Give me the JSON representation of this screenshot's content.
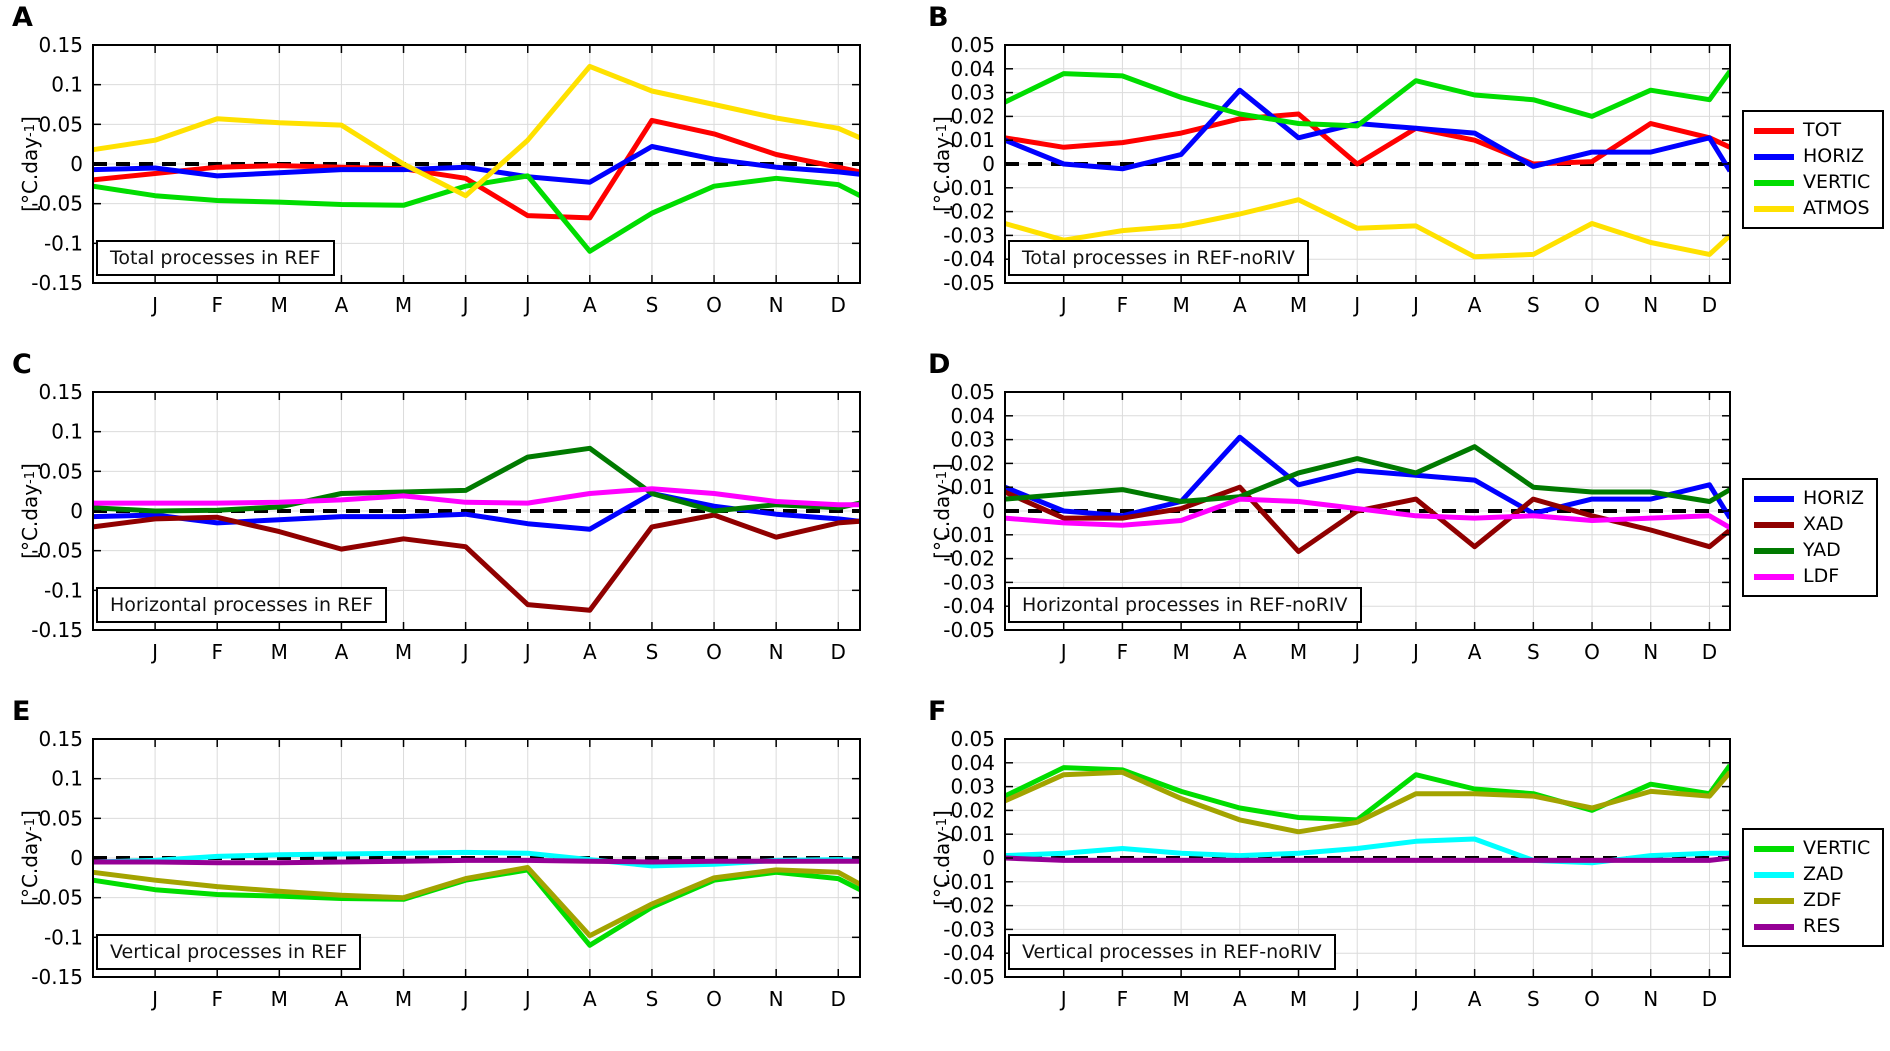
{
  "figure": {
    "background": "#FFFFFF"
  },
  "ylabel": {
    "prefix": "[°C.day",
    "sup": "-1",
    "suffix": "]"
  },
  "months": [
    "J",
    "F",
    "M",
    "A",
    "M",
    "J",
    "J",
    "A",
    "S",
    "O",
    "N",
    "D"
  ],
  "colors": {
    "TOT": "#FF0000",
    "HORIZ": "#0000FF",
    "VERTIC": "#00DD00",
    "ATMOS": "#FFE100",
    "XAD": "#900000",
    "YAD": "#007A00",
    "LDF": "#FF00FF",
    "ZAD": "#00FFFF",
    "ZDF": "#A3A300",
    "RES": "#950095",
    "grid": "#DBDBDB",
    "axis": "#000000"
  },
  "chart_data": [
    {
      "panel": "A",
      "type": "line",
      "title": "Total processes in REF",
      "categories": [
        "J",
        "F",
        "M",
        "A",
        "M",
        "J",
        "J",
        "A",
        "S",
        "O",
        "N",
        "D"
      ],
      "xlabel": "",
      "ylabel": "[°C.day-1]",
      "ylim": [
        -0.15,
        0.15
      ],
      "yticks": [
        "0.15",
        "0.1",
        "0.05",
        "0",
        "-0.05",
        "-0.1",
        "-0.15"
      ],
      "grid": true,
      "zero_line_dashed": true,
      "legend_position": null,
      "series": [
        {
          "name": "TOT",
          "edge_start": -0.02,
          "values": [
            -0.012,
            -0.004,
            -0.002,
            -0.004,
            -0.006,
            -0.018,
            -0.065,
            -0.068,
            0.055,
            0.038,
            0.012,
            -0.004
          ],
          "edge_end": -0.01
        },
        {
          "name": "HORIZ",
          "edge_start": -0.007,
          "values": [
            -0.005,
            -0.015,
            -0.011,
            -0.007,
            -0.007,
            -0.004,
            -0.016,
            -0.023,
            0.022,
            0.006,
            -0.004,
            -0.01
          ],
          "edge_end": -0.013
        },
        {
          "name": "VERTIC",
          "edge_start": -0.028,
          "values": [
            -0.04,
            -0.046,
            -0.048,
            -0.051,
            -0.052,
            -0.028,
            -0.015,
            -0.11,
            -0.062,
            -0.028,
            -0.018,
            -0.026
          ],
          "edge_end": -0.04
        },
        {
          "name": "ATMOS",
          "edge_start": 0.018,
          "values": [
            0.03,
            0.057,
            0.052,
            0.049,
            0.0,
            -0.04,
            0.03,
            0.123,
            0.092,
            0.075,
            0.058,
            0.045
          ],
          "edge_end": 0.033
        }
      ]
    },
    {
      "panel": "B",
      "type": "line",
      "title": "Total processes in REF-noRIV",
      "categories": [
        "J",
        "F",
        "M",
        "A",
        "M",
        "J",
        "J",
        "A",
        "S",
        "O",
        "N",
        "D"
      ],
      "xlabel": "",
      "ylabel": "[°C.day-1]",
      "ylim": [
        -0.05,
        0.05
      ],
      "yticks": [
        "0.05",
        "0.04",
        "0.03",
        "0.02",
        "0.01",
        "0",
        "-0.01",
        "-0.02",
        "-0.03",
        "-0.04",
        "-0.05"
      ],
      "grid": true,
      "zero_line_dashed": true,
      "legend_position": "right",
      "legend": [
        "TOT",
        "HORIZ",
        "VERTIC",
        "ATMOS"
      ],
      "series": [
        {
          "name": "TOT",
          "edge_start": 0.011,
          "values": [
            0.007,
            0.009,
            0.013,
            0.019,
            0.021,
            0.0,
            0.015,
            0.01,
            0.0,
            0.001,
            0.017,
            0.011
          ],
          "edge_end": 0.007
        },
        {
          "name": "HORIZ",
          "edge_start": 0.01,
          "values": [
            0.0,
            -0.002,
            0.004,
            0.031,
            0.011,
            0.017,
            0.015,
            0.013,
            -0.001,
            0.005,
            0.005,
            0.011
          ],
          "edge_end": -0.003
        },
        {
          "name": "VERTIC",
          "edge_start": 0.026,
          "values": [
            0.038,
            0.037,
            0.028,
            0.021,
            0.017,
            0.016,
            0.035,
            0.029,
            0.027,
            0.02,
            0.031,
            0.027
          ],
          "edge_end": 0.039
        },
        {
          "name": "ATMOS",
          "edge_start": -0.025,
          "values": [
            -0.032,
            -0.028,
            -0.026,
            -0.021,
            -0.015,
            -0.027,
            -0.026,
            -0.039,
            -0.038,
            -0.025,
            -0.033,
            -0.038
          ],
          "edge_end": -0.03
        }
      ]
    },
    {
      "panel": "C",
      "type": "line",
      "title": "Horizontal processes in REF",
      "categories": [
        "J",
        "F",
        "M",
        "A",
        "M",
        "J",
        "J",
        "A",
        "S",
        "O",
        "N",
        "D"
      ],
      "xlabel": "",
      "ylabel": "[°C.day-1]",
      "ylim": [
        -0.15,
        0.15
      ],
      "yticks": [
        "0.15",
        "0.1",
        "0.05",
        "0",
        "-0.05",
        "-0.1",
        "-0.15"
      ],
      "grid": true,
      "zero_line_dashed": true,
      "legend_position": null,
      "series": [
        {
          "name": "HORIZ",
          "edge_start": -0.007,
          "values": [
            -0.005,
            -0.015,
            -0.011,
            -0.007,
            -0.007,
            -0.004,
            -0.016,
            -0.023,
            0.022,
            0.006,
            -0.004,
            -0.01
          ],
          "edge_end": -0.013
        },
        {
          "name": "XAD",
          "edge_start": -0.02,
          "values": [
            -0.01,
            -0.008,
            -0.026,
            -0.048,
            -0.035,
            -0.045,
            -0.118,
            -0.125,
            -0.02,
            -0.005,
            -0.033,
            -0.015
          ],
          "edge_end": -0.013
        },
        {
          "name": "YAD",
          "edge_start": 0.004,
          "values": [
            0.0,
            0.001,
            0.005,
            0.022,
            0.024,
            0.026,
            0.068,
            0.079,
            0.022,
            0.0,
            0.008,
            0.004
          ],
          "edge_end": 0.01
        },
        {
          "name": "LDF",
          "edge_start": 0.01,
          "values": [
            0.01,
            0.01,
            0.011,
            0.014,
            0.019,
            0.011,
            0.01,
            0.022,
            0.028,
            0.022,
            0.012,
            0.008
          ],
          "edge_end": 0.008
        }
      ]
    },
    {
      "panel": "D",
      "type": "line",
      "title": "Horizontal processes in REF-noRIV",
      "categories": [
        "J",
        "F",
        "M",
        "A",
        "M",
        "J",
        "J",
        "A",
        "S",
        "O",
        "N",
        "D"
      ],
      "xlabel": "",
      "ylabel": "[°C.day-1]",
      "ylim": [
        -0.05,
        0.05
      ],
      "yticks": [
        "0.05",
        "0.04",
        "0.03",
        "0.02",
        "0.01",
        "0",
        "-0.01",
        "-0.02",
        "-0.03",
        "-0.04",
        "-0.05"
      ],
      "grid": true,
      "zero_line_dashed": true,
      "legend_position": "right",
      "legend": [
        "HORIZ",
        "XAD",
        "YAD",
        "LDF"
      ],
      "series": [
        {
          "name": "HORIZ",
          "edge_start": 0.01,
          "values": [
            0.0,
            -0.002,
            0.004,
            0.031,
            0.011,
            0.017,
            0.015,
            0.013,
            -0.001,
            0.005,
            0.005,
            0.011
          ],
          "edge_end": -0.003
        },
        {
          "name": "XAD",
          "edge_start": 0.008,
          "values": [
            -0.003,
            -0.003,
            0.001,
            0.01,
            -0.017,
            0.0,
            0.005,
            -0.015,
            0.005,
            -0.002,
            -0.008,
            -0.015
          ],
          "edge_end": -0.008
        },
        {
          "name": "YAD",
          "edge_start": 0.005,
          "values": [
            0.007,
            0.009,
            0.004,
            0.006,
            0.016,
            0.022,
            0.016,
            0.027,
            0.01,
            0.008,
            0.008,
            0.004
          ],
          "edge_end": 0.009
        },
        {
          "name": "LDF",
          "edge_start": -0.003,
          "values": [
            -0.005,
            -0.006,
            -0.004,
            0.005,
            0.004,
            0.001,
            -0.002,
            -0.003,
            -0.002,
            -0.004,
            -0.003,
            -0.002
          ],
          "edge_end": -0.007
        }
      ]
    },
    {
      "panel": "E",
      "type": "line",
      "title": "Vertical processes in REF",
      "categories": [
        "J",
        "F",
        "M",
        "A",
        "M",
        "J",
        "J",
        "A",
        "S",
        "O",
        "N",
        "D"
      ],
      "xlabel": "",
      "ylabel": "[°C.day-1]",
      "ylim": [
        -0.15,
        0.15
      ],
      "yticks": [
        "0.15",
        "0.1",
        "0.05",
        "0",
        "-0.05",
        "-0.1",
        "-0.15"
      ],
      "grid": true,
      "zero_line_dashed": true,
      "legend_position": null,
      "series": [
        {
          "name": "VERTIC",
          "edge_start": -0.028,
          "values": [
            -0.04,
            -0.046,
            -0.048,
            -0.051,
            -0.052,
            -0.028,
            -0.015,
            -0.11,
            -0.062,
            -0.028,
            -0.018,
            -0.026
          ],
          "edge_end": -0.04
        },
        {
          "name": "ZAD",
          "edge_start": -0.005,
          "values": [
            -0.003,
            0.002,
            0.004,
            0.005,
            0.006,
            0.007,
            0.006,
            -0.002,
            -0.01,
            -0.008,
            -0.003,
            -0.002
          ],
          "edge_end": -0.003
        },
        {
          "name": "ZDF",
          "edge_start": -0.018,
          "values": [
            -0.028,
            -0.036,
            -0.042,
            -0.047,
            -0.05,
            -0.026,
            -0.012,
            -0.098,
            -0.058,
            -0.025,
            -0.015,
            -0.018
          ],
          "edge_end": -0.033
        },
        {
          "name": "RES",
          "edge_start": -0.005,
          "values": [
            -0.005,
            -0.006,
            -0.006,
            -0.005,
            -0.004,
            -0.003,
            -0.003,
            -0.004,
            -0.005,
            -0.004,
            -0.004,
            -0.004
          ],
          "edge_end": -0.004
        }
      ]
    },
    {
      "panel": "F",
      "type": "line",
      "title": "Vertical processes in REF-noRIV",
      "categories": [
        "J",
        "F",
        "M",
        "A",
        "M",
        "J",
        "J",
        "A",
        "S",
        "O",
        "N",
        "D"
      ],
      "xlabel": "",
      "ylabel": "[°C.day-1]",
      "ylim": [
        -0.05,
        0.05
      ],
      "yticks": [
        "0.05",
        "0.04",
        "0.03",
        "0.02",
        "0.01",
        "0",
        "-0.01",
        "-0.02",
        "-0.03",
        "-0.04",
        "-0.05"
      ],
      "grid": true,
      "zero_line_dashed": true,
      "legend_position": "right",
      "legend": [
        "VERTIC",
        "ZAD",
        "ZDF",
        "RES"
      ],
      "series": [
        {
          "name": "VERTIC",
          "edge_start": 0.026,
          "values": [
            0.038,
            0.037,
            0.028,
            0.021,
            0.017,
            0.016,
            0.035,
            0.029,
            0.027,
            0.02,
            0.031,
            0.027
          ],
          "edge_end": 0.039
        },
        {
          "name": "ZAD",
          "edge_start": 0.001,
          "values": [
            0.002,
            0.004,
            0.002,
            0.001,
            0.002,
            0.004,
            0.007,
            0.008,
            -0.001,
            -0.002,
            0.001,
            0.002
          ],
          "edge_end": 0.002
        },
        {
          "name": "ZDF",
          "edge_start": 0.024,
          "values": [
            0.035,
            0.036,
            0.025,
            0.016,
            0.011,
            0.015,
            0.027,
            0.027,
            0.026,
            0.021,
            0.028,
            0.026
          ],
          "edge_end": 0.036
        },
        {
          "name": "RES",
          "edge_start": 0.0,
          "values": [
            -0.001,
            -0.001,
            -0.001,
            -0.001,
            -0.001,
            -0.001,
            -0.001,
            -0.001,
            -0.001,
            -0.001,
            -0.001,
            -0.001
          ],
          "edge_end": 0.0
        }
      ]
    }
  ]
}
